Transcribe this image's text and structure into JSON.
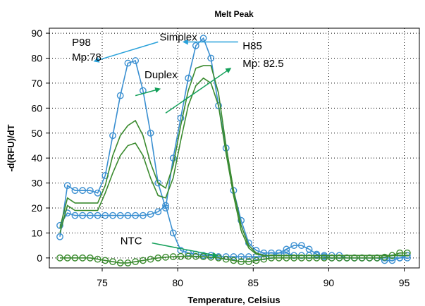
{
  "chart_data": {
    "type": "line",
    "title": "Melt Peak",
    "xlabel": "Temperature, Celsius",
    "ylabel": "-d(RFU)/dT",
    "xlim": [
      71.5,
      96
    ],
    "ylim": [
      -4,
      92
    ],
    "xticks": [
      75,
      80,
      85,
      90,
      95
    ],
    "yticks": [
      0,
      10,
      20,
      30,
      40,
      50,
      60,
      70,
      80,
      90
    ],
    "grid": true,
    "colors": {
      "blue": "#3a8fd1",
      "green": "#3a8a2e",
      "annotation_blue": "#29a1da",
      "annotation_green": "#14a05a"
    },
    "series": [
      {
        "color": "blue",
        "markers": true,
        "x": [
          72.2,
          72.7,
          73.2,
          73.7,
          74.2,
          74.7,
          75.2,
          75.7,
          76.2,
          76.7,
          77.2,
          77.7,
          78.2,
          78.7,
          79.2,
          79.7,
          80.2,
          80.7,
          81.2,
          81.7,
          82.2,
          82.7,
          83.2,
          83.7,
          84.2,
          84.7,
          85.2,
          85.7,
          86.2,
          86.7,
          87.2,
          87.7,
          88.2,
          88.7,
          89.2,
          89.7,
          90.2,
          90.7,
          91.2,
          91.7,
          92.2,
          92.7,
          93.2,
          93.7,
          94.2,
          94.7,
          95.2
        ],
        "y": [
          8.5,
          29,
          27,
          27,
          27,
          26,
          33,
          49,
          65,
          78,
          79,
          67,
          50,
          30,
          20,
          40,
          56,
          72,
          85,
          88,
          80,
          61,
          44,
          27,
          15,
          6,
          3,
          2,
          2,
          2,
          2,
          1,
          1,
          1,
          1,
          1,
          1,
          1,
          0,
          0,
          0,
          0,
          0,
          -1,
          -1,
          0,
          1
        ]
      },
      {
        "color": "blue",
        "markers": true,
        "x": [
          72.2,
          72.7,
          73.2,
          73.7,
          74.2,
          74.7,
          75.2,
          75.7,
          76.2,
          76.7,
          77.2,
          77.7,
          78.2,
          78.7,
          79.2,
          79.7,
          80.2,
          80.7,
          81.2,
          81.7,
          82.2,
          82.7,
          83.2,
          83.7,
          84.2,
          84.7,
          85.2,
          85.7,
          86.2,
          86.7,
          87.2,
          87.7,
          88.2,
          88.7,
          89.2,
          89.7,
          90.2,
          90.7,
          91.2,
          91.7,
          92.2,
          92.7,
          93.2,
          93.7,
          94.2,
          94.7,
          95.2
        ],
        "y": [
          13,
          18,
          17,
          17,
          17,
          17,
          17,
          17,
          17,
          17,
          17,
          17,
          17.5,
          18.5,
          21,
          10,
          3,
          2,
          1.5,
          1,
          1,
          0.5,
          0.5,
          0.5,
          0.5,
          0.5,
          0.5,
          0.5,
          1,
          2,
          3.5,
          5,
          5,
          3.5,
          1.5,
          0.5,
          0,
          0,
          0,
          0,
          0,
          0,
          0,
          0,
          0,
          0,
          0
        ]
      },
      {
        "color": "green",
        "markers": false,
        "x": [
          72.2,
          72.7,
          73.2,
          73.7,
          74.2,
          74.7,
          75.2,
          75.7,
          76.2,
          76.7,
          77.2,
          77.7,
          78.2,
          78.7,
          79.2,
          79.7,
          80.2,
          80.7,
          81.2,
          81.7,
          82.2,
          82.7,
          83.2,
          83.7,
          84.2,
          84.7,
          85.2,
          85.7,
          86.2,
          86.7,
          87.2,
          87.7,
          88.2,
          88.7,
          89.2,
          89.7,
          90.2,
          90.7,
          91.2,
          91.7,
          92.2,
          92.7,
          93.2,
          93.7,
          94.2,
          94.7,
          95.2
        ],
        "y": [
          12,
          24,
          22,
          22,
          22,
          22,
          29,
          41,
          49,
          53,
          55,
          49,
          38,
          30,
          28,
          37,
          53,
          67,
          76,
          77,
          77,
          66,
          45,
          27,
          13,
          5,
          2,
          1,
          1,
          1,
          1,
          1,
          1,
          1,
          1,
          1,
          1,
          1,
          1,
          1,
          1,
          1,
          1,
          1,
          1,
          1,
          1
        ]
      },
      {
        "color": "green",
        "markers": false,
        "x": [
          72.2,
          72.7,
          73.2,
          73.7,
          74.2,
          74.7,
          75.2,
          75.7,
          76.2,
          76.7,
          77.2,
          77.7,
          78.2,
          78.7,
          79.2,
          79.7,
          80.2,
          80.7,
          81.2,
          81.7,
          82.2,
          82.7,
          83.2,
          83.7,
          84.2,
          84.7,
          85.2,
          85.7,
          86.2,
          86.7,
          87.2,
          87.7,
          88.2,
          88.7,
          89.2,
          89.7,
          90.2,
          90.7,
          91.2,
          91.7,
          92.2,
          92.7,
          93.2,
          93.7,
          94.2,
          94.7,
          95.2
        ],
        "y": [
          10,
          21,
          19,
          19,
          19,
          19,
          26,
          34,
          41,
          45,
          46,
          41,
          32,
          25,
          24,
          32,
          47,
          61,
          69,
          72,
          70,
          61,
          42,
          25,
          11,
          4,
          1.5,
          1,
          1,
          1,
          1,
          1,
          1,
          1,
          1,
          1,
          1,
          1,
          1,
          1,
          1,
          1,
          1,
          1,
          1,
          1,
          1
        ]
      },
      {
        "color": "green",
        "markers": true,
        "x": [
          72.2,
          72.7,
          73.2,
          73.7,
          74.2,
          74.7,
          75.2,
          75.7,
          76.2,
          76.7,
          77.2,
          77.7,
          78.2,
          78.7,
          79.2,
          79.7,
          80.2,
          80.7,
          81.2,
          81.7,
          82.2,
          82.7,
          83.2,
          83.7,
          84.2,
          84.7,
          85.2,
          85.7,
          86.2,
          86.7,
          87.2,
          87.7,
          88.2,
          88.7,
          89.2,
          89.7,
          90.2,
          90.7,
          91.2,
          91.7,
          92.2,
          92.7,
          93.2,
          93.7,
          94.2,
          94.7,
          95.2
        ],
        "y": [
          0,
          0,
          0,
          0,
          0,
          -0.5,
          -1,
          -1.5,
          -2,
          -2,
          -1.5,
          -1,
          -0.5,
          0,
          0.3,
          0.5,
          0.6,
          0.7,
          0.6,
          0.5,
          0.3,
          0,
          -0.5,
          -1,
          -1.5,
          -1.5,
          -1,
          -0.5,
          0,
          0,
          0,
          0,
          0,
          0,
          0,
          0,
          0,
          0,
          0,
          0,
          0,
          0,
          0,
          0.3,
          1,
          2,
          2
        ]
      }
    ],
    "annotations": [
      {
        "text": "P98",
        "x": 73.0,
        "y": 85,
        "color": "black"
      },
      {
        "text": "Mp:78",
        "x": 73.0,
        "y": 79,
        "color": "black"
      },
      {
        "text": "Simplex",
        "x": 78.8,
        "y": 87,
        "color": "black"
      },
      {
        "text": "H85",
        "x": 84.3,
        "y": 83.5,
        "color": "black"
      },
      {
        "text": "Mp: 82.5",
        "x": 84.3,
        "y": 76.5,
        "color": "black"
      },
      {
        "text": "Duplex",
        "x": 77.8,
        "y": 72,
        "color": "black"
      },
      {
        "text": "NTC",
        "x": 76.2,
        "y": 5.5,
        "color": "black"
      }
    ],
    "arrows": [
      {
        "from": [
          78.7,
          86.5
        ],
        "to": [
          74.6,
          79.0
        ],
        "color": "annotation_blue"
      },
      {
        "from": [
          84.0,
          86.5
        ],
        "to": [
          80.5,
          86.5
        ],
        "color": "annotation_blue"
      },
      {
        "from": [
          79.2,
          58.0
        ],
        "to": [
          83.4,
          75.5
        ],
        "color": "annotation_green"
      },
      {
        "from": [
          77.2,
          65.0
        ],
        "to": [
          78.7,
          67.5
        ],
        "color": "annotation_green"
      },
      {
        "from": [
          78.3,
          6.0
        ],
        "to": [
          82.5,
          1.0
        ],
        "color": "annotation_green"
      }
    ]
  }
}
